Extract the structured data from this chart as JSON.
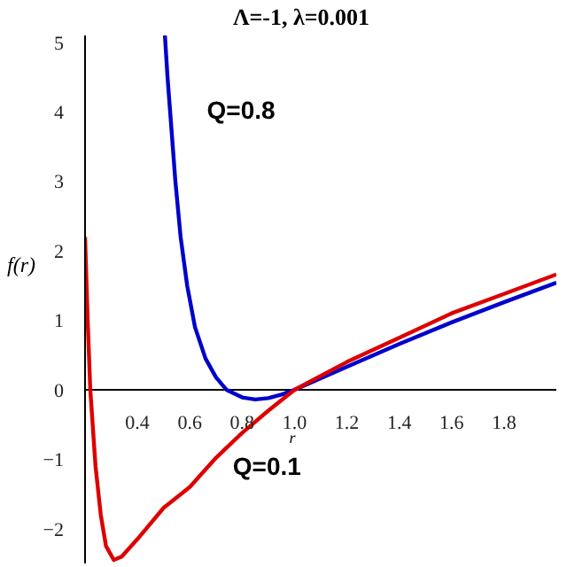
{
  "chart_data": {
    "type": "line",
    "title": "Λ=-1, λ=0.001",
    "xlabel": "r",
    "ylabel": "f(r)",
    "xlim": [
      0.2,
      2.0
    ],
    "xticks": [
      {
        "value": 0.4,
        "label": "0.4"
      },
      {
        "value": 0.6,
        "label": "0.6"
      },
      {
        "value": 0.8,
        "label": "0.8"
      },
      {
        "value": 1,
        "label": "1.0"
      },
      {
        "value": 1.2,
        "label": "1.2"
      },
      {
        "value": 1.4,
        "label": "1.4"
      },
      {
        "value": 1.6,
        "label": "1.6"
      },
      {
        "value": 1.8,
        "label": "1.8"
      }
    ],
    "ylim": [
      -2.5,
      5.1
    ],
    "yticks": [
      -2,
      -1,
      0,
      1,
      2,
      3,
      4,
      5
    ],
    "marker": "none",
    "line_style": "solid",
    "series": [
      {
        "name": "Q=0.8",
        "color": "#0000cc",
        "x": [
          0.505,
          0.515,
          0.525,
          0.545,
          0.565,
          0.59,
          0.62,
          0.66,
          0.7,
          0.74,
          0.8,
          0.85,
          0.9,
          0.95,
          1.0,
          1.2,
          1.4,
          1.6,
          1.8,
          2.0
        ],
        "values": [
          5.1,
          4.5,
          4,
          3,
          2.2,
          1.5,
          0.9,
          0.45,
          0.18,
          0,
          -0.11,
          -0.14,
          -0.12,
          -0.07,
          0,
          0.33,
          0.66,
          0.97,
          1.26,
          1.54
        ]
      },
      {
        "name": "Q=0.1",
        "color": "#dd0000",
        "x": [
          0.2,
          0.21,
          0.22,
          0.24,
          0.26,
          0.28,
          0.31,
          0.34,
          0.4,
          0.5,
          0.6,
          0.7,
          0.8,
          0.9,
          1.0,
          1.2,
          1.4,
          1.6,
          1.8,
          2.0
        ],
        "values": [
          2.2,
          1.0,
          0,
          -1.1,
          -1.8,
          -2.25,
          -2.45,
          -2.4,
          -2.15,
          -1.7,
          -1.4,
          -0.98,
          -0.62,
          -0.3,
          0,
          0.4,
          0.75,
          1.1,
          1.38,
          1.66
        ]
      }
    ]
  }
}
